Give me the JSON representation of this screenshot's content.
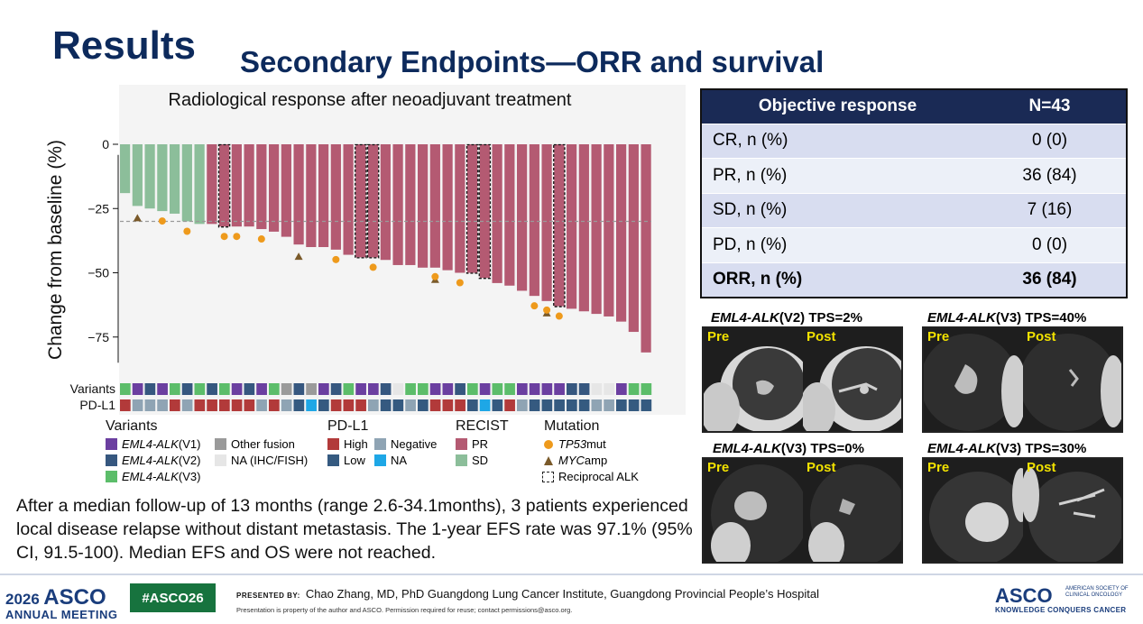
{
  "slide": {
    "title": "Results",
    "subtitle": "Secondary Endpoints—ORR and survival"
  },
  "chart_data": {
    "type": "bar",
    "title": "Radiological response after neoadjuvant treatment",
    "ylabel": "Change from baseline (%)",
    "xlabel": "",
    "ylim": [
      -85,
      5
    ],
    "yticks": [
      0,
      -25,
      -50,
      -75
    ],
    "reference_line": -30,
    "values": [
      -19,
      -24,
      -25,
      -26,
      -27,
      -30,
      -31,
      -31,
      -32,
      -32,
      -32,
      -33,
      -34,
      -36,
      -39,
      -40,
      -40,
      -41,
      -43,
      -44,
      -44,
      -45,
      -47,
      -47,
      -48,
      -48,
      -49,
      -50,
      -50,
      -52,
      -54,
      -55,
      -57,
      -59,
      -61,
      -63,
      -64,
      -65,
      -66,
      -67,
      -69,
      -73,
      -81
    ],
    "recist": [
      "SD",
      "SD",
      "SD",
      "SD",
      "SD",
      "SD",
      "SD",
      "PR",
      "PR",
      "PR",
      "PR",
      "PR",
      "PR",
      "PR",
      "PR",
      "PR",
      "PR",
      "PR",
      "PR",
      "PR",
      "PR",
      "PR",
      "PR",
      "PR",
      "PR",
      "PR",
      "PR",
      "PR",
      "PR",
      "PR",
      "PR",
      "PR",
      "PR",
      "PR",
      "PR",
      "PR",
      "PR",
      "PR",
      "PR",
      "PR",
      "PR",
      "PR",
      "PR"
    ],
    "reciprocal_alk": [
      8,
      19,
      20,
      28,
      29,
      35
    ],
    "tp53_mut": [
      3,
      5,
      8,
      9,
      11,
      17,
      20,
      25,
      27,
      33,
      34,
      35
    ],
    "myc_amp": [
      1,
      14,
      25,
      34
    ],
    "tracks": {
      "variants_label": "Variants",
      "pdl1_label": "PD-L1",
      "variants": [
        "V3",
        "V1",
        "V2",
        "V1",
        "V3",
        "V2",
        "V3",
        "V2",
        "V3",
        "V1",
        "V2",
        "V1",
        "V3",
        "Other",
        "V2",
        "Other",
        "V1",
        "V2",
        "V3",
        "V1",
        "V1",
        "V2",
        "NA",
        "V3",
        "V3",
        "V1",
        "V1",
        "V2",
        "V3",
        "V1",
        "V3",
        "V3",
        "V1",
        "V1",
        "V1",
        "V1",
        "V2",
        "V2",
        "NA",
        "NA",
        "V1",
        "V3",
        "V3"
      ],
      "pdl1": [
        "High",
        "Negative",
        "Negative",
        "Negative",
        "High",
        "Negative",
        "High",
        "High",
        "High",
        "High",
        "High",
        "Negative",
        "High",
        "Negative",
        "Low",
        "NA",
        "Low",
        "High",
        "High",
        "High",
        "Negative",
        "Low",
        "Low",
        "Negative",
        "Low",
        "High",
        "High",
        "High",
        "Low",
        "NA",
        "Low",
        "High",
        "Negative",
        "Low",
        "Low",
        "Low",
        "Low",
        "Low",
        "Negative",
        "Negative",
        "Low",
        "Low",
        "Low"
      ]
    },
    "colors": {
      "PR": "#b45a72",
      "SD": "#8cbe9a",
      "V1": "#6b3fa0",
      "V2": "#36577f",
      "V3": "#5cbd6a",
      "Other": "#9a9a9a",
      "NA_variant": "#e6e6e6",
      "High": "#b23a3a",
      "Low": "#355a80",
      "Negative": "#8fa4b4",
      "NA_pdl1": "#1ea7e6",
      "tp53": "#ee9a1c",
      "myc": "#7a5a2a"
    },
    "legend": {
      "variants_title": "Variants",
      "v1_gene": "EML4-ALK",
      "v1_tag": " (V1)",
      "v2_gene": "EML4-ALK",
      "v2_tag": " (V2)",
      "v3_gene": "EML4-ALK",
      "v3_tag": " (V3)",
      "other": "Other fusion",
      "na": "NA (IHC/FISH)",
      "pdl1_title": "PD-L1",
      "high": "High",
      "negative": "Negative",
      "low": "Low",
      "na_pdl1": "NA",
      "recist_title": "RECIST",
      "pr": "PR",
      "sd": "SD",
      "mutation_title": "Mutation",
      "tp53_gene": "TP53",
      "tp53_tag": " mut",
      "myc_gene": "MYC",
      "myc_tag": " amp",
      "reciprocal": "Reciprocal ALK"
    }
  },
  "table": {
    "header": [
      "Objective response",
      "N=43"
    ],
    "rows": [
      [
        "CR, n (%)",
        "0 (0)"
      ],
      [
        "PR, n (%)",
        "36 (84)"
      ],
      [
        "SD, n (%)",
        "7 (16)"
      ],
      [
        "PD, n (%)",
        "0 (0)"
      ],
      [
        "ORR, n (%)",
        "36 (84)"
      ]
    ]
  },
  "ct_images": [
    {
      "gene": "EML4-ALK",
      "rest": "(V2) TPS=2%",
      "pre": "Pre",
      "post": "Post"
    },
    {
      "gene": "EML4-ALK",
      "rest": "(V3) TPS=40%",
      "pre": "Pre",
      "post": "Post"
    },
    {
      "gene": "EML4-ALK",
      "rest": "(V3) TPS=0%",
      "pre": "Pre",
      "post": "Post"
    },
    {
      "gene": "EML4-ALK",
      "rest": "(V3) TPS=30%",
      "pre": "Pre",
      "post": "Post"
    }
  ],
  "summary": "After a median follow-up of 13 months (range 2.6-34.1months), 3 patients experienced local disease relapse without distant metastasis. The 1-year EFS rate was 97.1% (95% CI, 91.5-100). Median EFS and OS were not reached.",
  "footer": {
    "year": "2026",
    "asco": "ASCO",
    "annual_meeting": "ANNUAL MEETING",
    "hashtag": "#ASCO26",
    "presented_by": "PRESENTED BY:",
    "presenter": "Chao Zhang, MD, PhD   Guangdong Lung Cancer Institute, Guangdong Provincial People’s Hospital",
    "disclaimer": "Presentation is property of the author and ASCO. Permission required for reuse; contact permissions@asco.org.",
    "society": "AMERICAN SOCIETY OF CLINICAL ONCOLOGY",
    "tagline": "KNOWLEDGE CONQUERS CANCER"
  }
}
